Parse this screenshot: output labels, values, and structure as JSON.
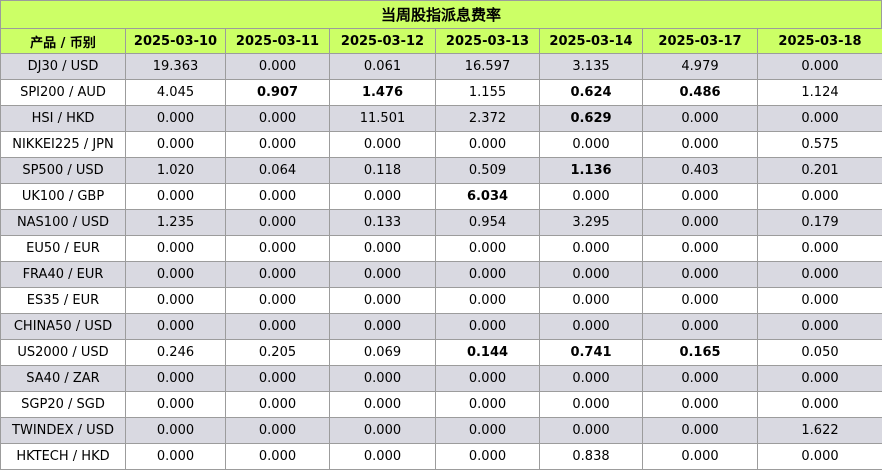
{
  "title": "当周股指派息费率",
  "columns": [
    "产品 / 币别",
    "2025-03-10",
    "2025-03-11",
    "2025-03-12",
    "2025-03-13",
    "2025-03-14",
    "2025-03-17",
    "2025-03-18"
  ],
  "rows": [
    {
      "product": "DJ30 / USD",
      "values": [
        "19.363",
        "0.000",
        "0.061",
        "16.597",
        "3.135",
        "4.979",
        "0.000"
      ],
      "bold": []
    },
    {
      "product": "SPI200 / AUD",
      "values": [
        "4.045",
        "0.907",
        "1.476",
        "1.155",
        "0.624",
        "0.486",
        "1.124"
      ],
      "bold": [
        1,
        2,
        4,
        5
      ]
    },
    {
      "product": "HSI / HKD",
      "values": [
        "0.000",
        "0.000",
        "11.501",
        "2.372",
        "0.629",
        "0.000",
        "0.000"
      ],
      "bold": [
        4
      ]
    },
    {
      "product": "NIKKEI225 / JPN",
      "values": [
        "0.000",
        "0.000",
        "0.000",
        "0.000",
        "0.000",
        "0.000",
        "0.575"
      ],
      "bold": []
    },
    {
      "product": "SP500 / USD",
      "values": [
        "1.020",
        "0.064",
        "0.118",
        "0.509",
        "1.136",
        "0.403",
        "0.201"
      ],
      "bold": [
        4
      ]
    },
    {
      "product": "UK100 / GBP",
      "values": [
        "0.000",
        "0.000",
        "0.000",
        "6.034",
        "0.000",
        "0.000",
        "0.000"
      ],
      "bold": [
        3
      ]
    },
    {
      "product": "NAS100 / USD",
      "values": [
        "1.235",
        "0.000",
        "0.133",
        "0.954",
        "3.295",
        "0.000",
        "0.179"
      ],
      "bold": []
    },
    {
      "product": "EU50 / EUR",
      "values": [
        "0.000",
        "0.000",
        "0.000",
        "0.000",
        "0.000",
        "0.000",
        "0.000"
      ],
      "bold": []
    },
    {
      "product": "FRA40 / EUR",
      "values": [
        "0.000",
        "0.000",
        "0.000",
        "0.000",
        "0.000",
        "0.000",
        "0.000"
      ],
      "bold": []
    },
    {
      "product": "ES35 / EUR",
      "values": [
        "0.000",
        "0.000",
        "0.000",
        "0.000",
        "0.000",
        "0.000",
        "0.000"
      ],
      "bold": []
    },
    {
      "product": "CHINA50 / USD",
      "values": [
        "0.000",
        "0.000",
        "0.000",
        "0.000",
        "0.000",
        "0.000",
        "0.000"
      ],
      "bold": []
    },
    {
      "product": "US2000 / USD",
      "values": [
        "0.246",
        "0.205",
        "0.069",
        "0.144",
        "0.741",
        "0.165",
        "0.050"
      ],
      "bold": [
        3,
        4,
        5
      ]
    },
    {
      "product": "SA40 / ZAR",
      "values": [
        "0.000",
        "0.000",
        "0.000",
        "0.000",
        "0.000",
        "0.000",
        "0.000"
      ],
      "bold": []
    },
    {
      "product": "SGP20 / SGD",
      "values": [
        "0.000",
        "0.000",
        "0.000",
        "0.000",
        "0.000",
        "0.000",
        "0.000"
      ],
      "bold": []
    },
    {
      "product": "TWINDEX / USD",
      "values": [
        "0.000",
        "0.000",
        "0.000",
        "0.000",
        "0.000",
        "0.000",
        "1.622"
      ],
      "bold": []
    },
    {
      "product": "HKTECH / HKD",
      "values": [
        "0.000",
        "0.000",
        "0.000",
        "0.000",
        "0.838",
        "0.000",
        "0.000"
      ],
      "bold": []
    }
  ],
  "colors": {
    "header_bg": "#ccff66",
    "odd_row_bg": "#d9d9e1",
    "even_row_bg": "#ffffff",
    "border": "#9c9c9c"
  }
}
